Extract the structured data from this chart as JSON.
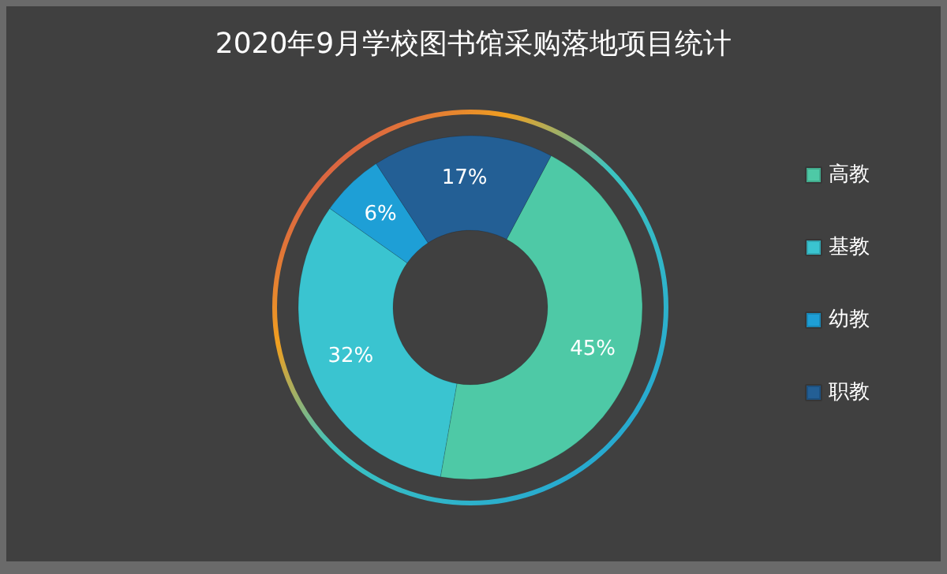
{
  "chart_data": {
    "type": "donut",
    "title": "2020年9月学校图书馆采购落地项目统计",
    "categories": [
      "高教",
      "基教",
      "幼教",
      "职教"
    ],
    "values": [
      45,
      32,
      6,
      17
    ],
    "colors": [
      "#4ec9a6",
      "#3ac4d0",
      "#1e9fd6",
      "#235f95"
    ],
    "value_labels": [
      "45%",
      "32%",
      "6%",
      "17%"
    ],
    "legend": "right"
  }
}
